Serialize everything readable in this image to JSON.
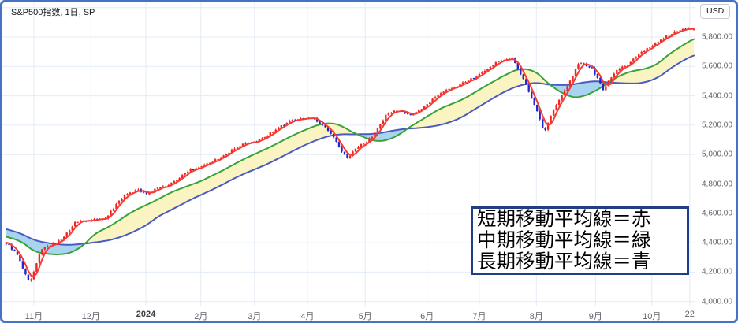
{
  "header": {
    "symbol_label": "S&P500指数, 1日, SP",
    "currency_button_label": "USD"
  },
  "annotation_box": {
    "lines": [
      "短期移動平均線＝赤",
      "中期移動平均線＝緑",
      "長期移動平均線＝青"
    ]
  },
  "colors": {
    "frame_border": "#4472c4",
    "grid": "#e4ebf6",
    "axis_line": "#8d929c",
    "axis_text": "#60646c",
    "candle_up": "#ee2722",
    "candle_down": "#2127cd",
    "ma_short": "#f73b32",
    "ma_mid": "#3aa23a",
    "ma_long": "#4a5ac2",
    "band_mid_above_long": "#faf4c2",
    "band_mid_below_long": "#a9d4ef",
    "annotation_border": "#1e3f86"
  },
  "chart_data": {
    "type": "candlestick",
    "title": "S&P500指数, 1日, SP",
    "currency": "USD",
    "ylim": [
      3990,
      6030
    ],
    "price_axis": {
      "ticks": [
        "5,800.00",
        "5,600.00",
        "5,400.00",
        "5,200.00",
        "5,000.00",
        "4,800.00",
        "4,600.00",
        "4,400.00",
        "4,200.00",
        "4,000.00"
      ],
      "values": [
        5800,
        5600,
        5400,
        5200,
        5000,
        4800,
        4600,
        4400,
        4200,
        4000
      ],
      "gridline_values": [
        6000,
        5800,
        5600,
        5400,
        5200,
        5000,
        4800,
        4600,
        4400,
        4200,
        4000
      ]
    },
    "time_axis": {
      "ticks": [
        {
          "label": "11月",
          "t": 0.04
        },
        {
          "label": "12月",
          "t": 0.123
        },
        {
          "label": "2024",
          "t": 0.203,
          "bold": true
        },
        {
          "label": "2月",
          "t": 0.283
        },
        {
          "label": "3月",
          "t": 0.361
        },
        {
          "label": "4月",
          "t": 0.438
        },
        {
          "label": "5月",
          "t": 0.522
        },
        {
          "label": "6月",
          "t": 0.612
        },
        {
          "label": "7月",
          "t": 0.688
        },
        {
          "label": "8月",
          "t": 0.771
        },
        {
          "label": "9月",
          "t": 0.857
        },
        {
          "label": "10月",
          "t": 0.939
        },
        {
          "label": "22",
          "t": 0.994
        }
      ]
    },
    "series": {
      "close_anchors": [
        [
          -0.24,
          4560
        ],
        [
          -0.18,
          4620
        ],
        [
          -0.12,
          4520
        ],
        [
          -0.06,
          4460
        ],
        [
          0,
          4400
        ],
        [
          0.014,
          4330
        ],
        [
          0.034,
          4125
        ],
        [
          0.05,
          4350
        ],
        [
          0.065,
          4385
        ],
        [
          0.08,
          4420
        ],
        [
          0.1,
          4540
        ],
        [
          0.125,
          4555
        ],
        [
          0.145,
          4570
        ],
        [
          0.169,
          4710
        ],
        [
          0.19,
          4765
        ],
        [
          0.205,
          4730
        ],
        [
          0.218,
          4765
        ],
        [
          0.237,
          4790
        ],
        [
          0.266,
          4890
        ],
        [
          0.3,
          4955
        ],
        [
          0.318,
          5000
        ],
        [
          0.346,
          5075
        ],
        [
          0.369,
          5100
        ],
        [
          0.386,
          5150
        ],
        [
          0.415,
          5235
        ],
        [
          0.445,
          5255
        ],
        [
          0.47,
          5160
        ],
        [
          0.495,
          4975
        ],
        [
          0.513,
          5055
        ],
        [
          0.53,
          5110
        ],
        [
          0.553,
          5270
        ],
        [
          0.57,
          5305
        ],
        [
          0.587,
          5265
        ],
        [
          0.61,
          5330
        ],
        [
          0.633,
          5430
        ],
        [
          0.656,
          5470
        ],
        [
          0.679,
          5520
        ],
        [
          0.708,
          5615
        ],
        [
          0.736,
          5660
        ],
        [
          0.753,
          5505
        ],
        [
          0.771,
          5315
        ],
        [
          0.782,
          5145
        ],
        [
          0.794,
          5295
        ],
        [
          0.811,
          5425
        ],
        [
          0.834,
          5630
        ],
        [
          0.851,
          5595
        ],
        [
          0.868,
          5445
        ],
        [
          0.885,
          5560
        ],
        [
          0.908,
          5630
        ],
        [
          0.926,
          5705
        ],
        [
          0.943,
          5750
        ],
        [
          0.96,
          5805
        ],
        [
          0.975,
          5845
        ],
        [
          1.0,
          5860
        ]
      ],
      "ma_short_legend": "短期移動平均線＝赤",
      "ma_mid_legend": "中期移動平均線＝緑",
      "ma_long_legend": "長期移動平均線＝青"
    }
  }
}
